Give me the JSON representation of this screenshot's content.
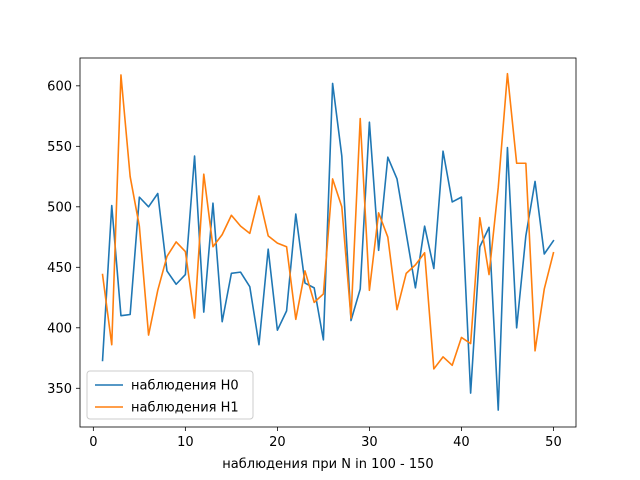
{
  "chart_data": {
    "type": "line",
    "xlabel": "наблюдения при N in 100 - 150",
    "ylabel": "",
    "xlim": [
      -1.45,
      52.45
    ],
    "ylim": [
      318,
      623
    ],
    "xticks": [
      0,
      10,
      20,
      30,
      40,
      50
    ],
    "yticks": [
      350,
      400,
      450,
      500,
      550,
      600
    ],
    "grid": false,
    "legend_position": "lower-left",
    "x": [
      1,
      2,
      3,
      4,
      5,
      6,
      7,
      8,
      9,
      10,
      11,
      12,
      13,
      14,
      15,
      16,
      17,
      18,
      19,
      20,
      21,
      22,
      23,
      24,
      25,
      26,
      27,
      28,
      29,
      30,
      31,
      32,
      33,
      34,
      35,
      36,
      37,
      38,
      39,
      40,
      41,
      42,
      43,
      44,
      45,
      46,
      47,
      48,
      49,
      50
    ],
    "series": [
      {
        "name": "наблюдения H0",
        "color": "#1f77b4",
        "values": [
          373,
          501,
          410,
          411,
          508,
          500,
          511,
          447,
          436,
          444,
          542,
          413,
          503,
          405,
          445,
          446,
          434,
          386,
          465,
          398,
          414,
          494,
          437,
          433,
          390,
          602,
          542,
          406,
          432,
          570,
          464,
          541,
          523,
          478,
          433,
          484,
          449,
          546,
          504,
          508,
          346,
          467,
          483,
          332,
          549,
          400,
          476,
          521,
          461,
          472
        ]
      },
      {
        "name": "наблюдения H1",
        "color": "#ff7f0e",
        "values": [
          444,
          386,
          609,
          525,
          484,
          394,
          431,
          459,
          471,
          463,
          408,
          527,
          467,
          477,
          493,
          484,
          478,
          509,
          476,
          470,
          467,
          407,
          447,
          421,
          428,
          523,
          500,
          408,
          573,
          431,
          495,
          475,
          415,
          445,
          452,
          462,
          366,
          376,
          369,
          392,
          387,
          491,
          444,
          516,
          610,
          536,
          536,
          381,
          432,
          462
        ]
      }
    ]
  }
}
